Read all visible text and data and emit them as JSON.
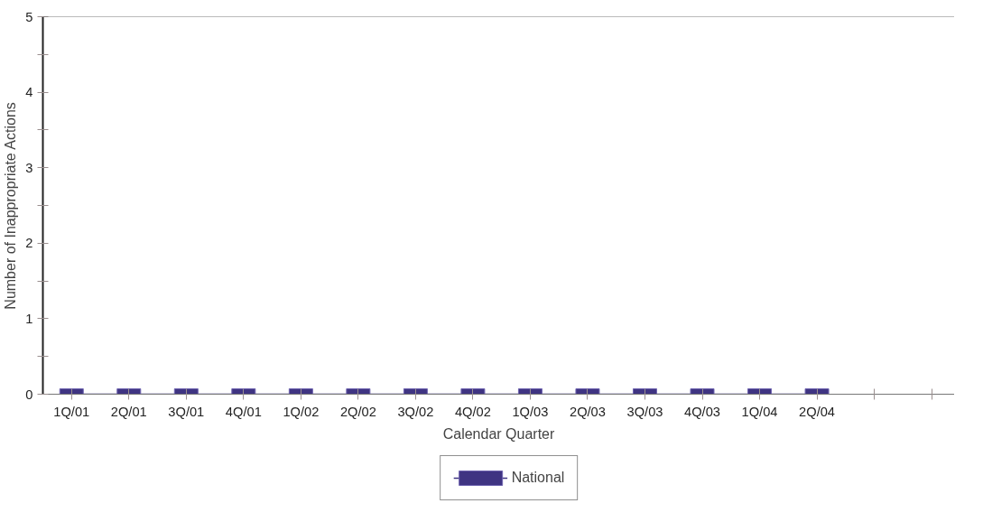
{
  "chart_data": {
    "type": "line",
    "xlabel": "Calendar Quarter",
    "ylabel": "Number of Inappropriate Actions",
    "categories": [
      "1Q/01",
      "2Q/01",
      "3Q/01",
      "4Q/01",
      "1Q/02",
      "2Q/02",
      "3Q/02",
      "4Q/02",
      "1Q/03",
      "2Q/03",
      "3Q/03",
      "4Q/03",
      "1Q/04",
      "2Q/04",
      null,
      null
    ],
    "series": [
      {
        "name": "National",
        "color": "#3f3482",
        "values": [
          0,
          0,
          0,
          0,
          0,
          0,
          0,
          0,
          0,
          0,
          0,
          0,
          0,
          0,
          null,
          null
        ]
      }
    ],
    "ylim": [
      0,
      5
    ],
    "yticks": [
      0,
      {
        "value": 0.5,
        "label": null
      },
      1,
      {
        "value": 1.5,
        "label": null
      },
      2,
      {
        "value": 2.5,
        "label": null
      },
      3,
      {
        "value": 3.5,
        "label": null
      },
      4,
      {
        "value": 4.5,
        "label": null
      },
      5
    ],
    "grid": false,
    "legend": "bottom",
    "marker": "square",
    "line_style": "solid"
  }
}
